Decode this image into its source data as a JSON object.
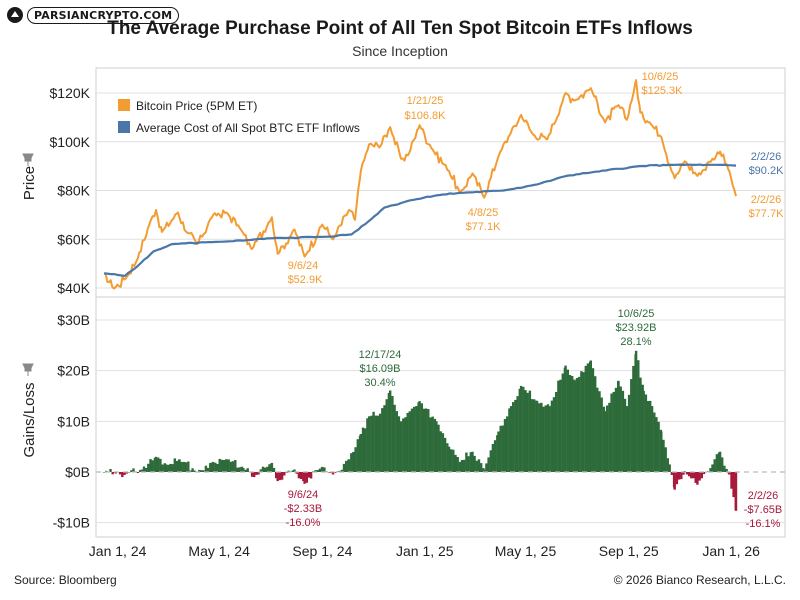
{
  "header": {
    "logo_text": "PARSIANCRYPTO.COM",
    "title": "The Average Purchase Point of All Ten Spot Bitcoin ETFs Inflows",
    "subtitle": "Since Inception"
  },
  "footer": {
    "source": "Source: Bloomberg",
    "copyright": "© 2026 Bianco Research, L.L.C."
  },
  "colors": {
    "price": "#F39C32",
    "cost": "#4A76A8",
    "gain": "#2E6B3A",
    "loss": "#A8183A",
    "grid": "#e0e0e0"
  },
  "icons": {
    "axis_pin": "pushpin-icon"
  },
  "chart_data": [
    {
      "type": "line",
      "panel": "top",
      "ylabel": "Price",
      "x_range": [
        "2024-01-11",
        "2026-02-02"
      ],
      "x_ticks": [
        {
          "date": "2024-01-01",
          "label": "Jan 1, 24"
        },
        {
          "date": "2024-05-01",
          "label": "May 1, 24"
        },
        {
          "date": "2024-09-01",
          "label": "Sep 1, 24"
        },
        {
          "date": "2025-01-01",
          "label": "Jan 1, 25"
        },
        {
          "date": "2025-05-01",
          "label": "May 1, 25"
        },
        {
          "date": "2025-09-01",
          "label": "Sep 1, 25"
        },
        {
          "date": "2026-01-01",
          "label": "Jan 1, 26"
        }
      ],
      "ylim": [
        40000,
        130000
      ],
      "y_ticks": [
        {
          "value": 40000,
          "label": "$40K"
        },
        {
          "value": 60000,
          "label": "$60K"
        },
        {
          "value": 80000,
          "label": "$80K"
        },
        {
          "value": 100000,
          "label": "$100K"
        },
        {
          "value": 120000,
          "label": "$120K"
        }
      ],
      "legend_position": "top-left",
      "series": [
        {
          "name": "Bitcoin Price (5PM ET)",
          "color": "#F39C32",
          "points": [
            [
              "2024-01-11",
              46000
            ],
            [
              "2024-01-23",
              39800
            ],
            [
              "2024-02-08",
              45000
            ],
            [
              "2024-02-20",
              52000
            ],
            [
              "2024-03-05",
              66000
            ],
            [
              "2024-03-13",
              72000
            ],
            [
              "2024-03-20",
              63000
            ],
            [
              "2024-04-08",
              71000
            ],
            [
              "2024-04-18",
              63000
            ],
            [
              "2024-05-01",
              58000
            ],
            [
              "2024-05-20",
              70000
            ],
            [
              "2024-06-05",
              71000
            ],
            [
              "2024-06-20",
              65000
            ],
            [
              "2024-07-05",
              56000
            ],
            [
              "2024-07-29",
              69000
            ],
            [
              "2024-08-05",
              54000
            ],
            [
              "2024-08-25",
              64000
            ],
            [
              "2024-09-06",
              52900
            ],
            [
              "2024-09-27",
              66000
            ],
            [
              "2024-10-10",
              60000
            ],
            [
              "2024-10-29",
              72000
            ],
            [
              "2024-11-05",
              68000
            ],
            [
              "2024-11-12",
              88000
            ],
            [
              "2024-11-22",
              99000
            ],
            [
              "2024-12-05",
              98000
            ],
            [
              "2024-12-17",
              106000
            ],
            [
              "2024-12-30",
              93000
            ],
            [
              "2025-01-08",
              95000
            ],
            [
              "2025-01-21",
              106800
            ],
            [
              "2025-02-05",
              97000
            ],
            [
              "2025-02-25",
              88000
            ],
            [
              "2025-03-10",
              79000
            ],
            [
              "2025-03-25",
              87000
            ],
            [
              "2025-04-08",
              77100
            ],
            [
              "2025-04-25",
              94000
            ],
            [
              "2025-05-10",
              104000
            ],
            [
              "2025-05-22",
              111000
            ],
            [
              "2025-06-05",
              103000
            ],
            [
              "2025-06-22",
              101000
            ],
            [
              "2025-07-14",
              120000
            ],
            [
              "2025-07-25",
              117000
            ],
            [
              "2025-08-13",
              122000
            ],
            [
              "2025-08-30",
              108000
            ],
            [
              "2025-09-15",
              115000
            ],
            [
              "2025-09-25",
              109000
            ],
            [
              "2025-10-06",
              125300
            ],
            [
              "2025-10-11",
              112000
            ],
            [
              "2025-10-22",
              108000
            ],
            [
              "2025-11-05",
              102000
            ],
            [
              "2025-11-21",
              85000
            ],
            [
              "2025-12-03",
              92000
            ],
            [
              "2025-12-18",
              86000
            ],
            [
              "2026-01-05",
              93000
            ],
            [
              "2026-01-14",
              96000
            ],
            [
              "2026-01-25",
              88000
            ],
            [
              "2026-02-02",
              77700
            ]
          ]
        },
        {
          "name": "Average Cost of All Spot BTC ETF Inflows",
          "color": "#4A76A8",
          "points": [
            [
              "2024-01-11",
              46000
            ],
            [
              "2024-02-05",
              45000
            ],
            [
              "2024-02-20",
              49000
            ],
            [
              "2024-03-10",
              55000
            ],
            [
              "2024-04-01",
              58000
            ],
            [
              "2024-06-01",
              59000
            ],
            [
              "2024-08-01",
              60500
            ],
            [
              "2024-10-01",
              61000
            ],
            [
              "2024-11-01",
              62000
            ],
            [
              "2024-11-20",
              67000
            ],
            [
              "2024-12-10",
              73000
            ],
            [
              "2025-01-10",
              76000
            ],
            [
              "2025-02-10",
              78000
            ],
            [
              "2025-03-10",
              79000
            ],
            [
              "2025-05-01",
              80000
            ],
            [
              "2025-06-10",
              82500
            ],
            [
              "2025-07-15",
              86000
            ],
            [
              "2025-08-15",
              87500
            ],
            [
              "2025-10-10",
              90000
            ],
            [
              "2025-11-15",
              90500
            ],
            [
              "2026-01-15",
              90500
            ],
            [
              "2026-02-02",
              90200
            ]
          ]
        }
      ],
      "annotations": [
        {
          "date": "1/21/25",
          "value": "$106.8K",
          "color": "#F39C32"
        },
        {
          "date": "10/6/25",
          "value": "$125.3K",
          "color": "#F39C32"
        },
        {
          "date": "9/6/24",
          "value": "$52.9K",
          "color": "#F39C32"
        },
        {
          "date": "4/8/25",
          "value": "$77.1K",
          "color": "#F39C32"
        },
        {
          "date": "2/2/26",
          "value": "$90.2K",
          "color": "#4A76A8"
        },
        {
          "date": "2/2/26",
          "value": "$77.7K",
          "color": "#F39C32"
        }
      ]
    },
    {
      "type": "bar",
      "panel": "bottom",
      "ylabel": "Gains/Loss",
      "ylim": [
        -10,
        30
      ],
      "y_unit": "B",
      "y_ticks": [
        {
          "value": 30,
          "label": "$30B"
        },
        {
          "value": 20,
          "label": "$20B"
        },
        {
          "value": 10,
          "label": "$10B"
        },
        {
          "value": 0,
          "label": "$0B"
        },
        {
          "value": -10,
          "label": "-$10B"
        }
      ],
      "series": [
        {
          "name": "Gains/Loss",
          "positive_color": "#2E6B3A",
          "negative_color": "#A8183A",
          "points": [
            [
              "2024-01-11",
              0.0
            ],
            [
              "2024-01-25",
              -0.3
            ],
            [
              "2024-02-10",
              0.0
            ],
            [
              "2024-02-25",
              0.5
            ],
            [
              "2024-03-13",
              3.0
            ],
            [
              "2024-03-25",
              1.5
            ],
            [
              "2024-04-10",
              2.5
            ],
            [
              "2024-05-01",
              0.0
            ],
            [
              "2024-05-20",
              2.0
            ],
            [
              "2024-06-05",
              2.5
            ],
            [
              "2024-06-25",
              0.8
            ],
            [
              "2024-07-08",
              -1.0
            ],
            [
              "2024-07-29",
              1.8
            ],
            [
              "2024-08-05",
              -1.8
            ],
            [
              "2024-08-25",
              0.5
            ],
            [
              "2024-09-06",
              -2.33
            ],
            [
              "2024-09-27",
              1.0
            ],
            [
              "2024-10-10",
              -0.5
            ],
            [
              "2024-10-29",
              2.5
            ],
            [
              "2024-11-12",
              7.5
            ],
            [
              "2024-11-22",
              11.0
            ],
            [
              "2024-12-05",
              11.5
            ],
            [
              "2024-12-17",
              16.09
            ],
            [
              "2024-12-30",
              10.0
            ],
            [
              "2025-01-21",
              14.0
            ],
            [
              "2025-02-10",
              10.0
            ],
            [
              "2025-02-25",
              5.0
            ],
            [
              "2025-03-10",
              2.0
            ],
            [
              "2025-03-25",
              4.0
            ],
            [
              "2025-04-08",
              0.5
            ],
            [
              "2025-04-25",
              8.0
            ],
            [
              "2025-05-10",
              13.0
            ],
            [
              "2025-05-22",
              17.0
            ],
            [
              "2025-06-10",
              14.0
            ],
            [
              "2025-06-25",
              13.0
            ],
            [
              "2025-07-14",
              21.0
            ],
            [
              "2025-07-25",
              18.0
            ],
            [
              "2025-08-13",
              22.0
            ],
            [
              "2025-08-30",
              12.0
            ],
            [
              "2025-09-15",
              18.0
            ],
            [
              "2025-09-25",
              13.0
            ],
            [
              "2025-10-06",
              23.92
            ],
            [
              "2025-10-15",
              16.0
            ],
            [
              "2025-10-25",
              13.0
            ],
            [
              "2025-11-05",
              8.0
            ],
            [
              "2025-11-15",
              1.5
            ],
            [
              "2025-11-21",
              -3.5
            ],
            [
              "2025-12-03",
              0.2
            ],
            [
              "2025-12-18",
              -2.5
            ],
            [
              "2026-01-05",
              1.5
            ],
            [
              "2026-01-14",
              4.0
            ],
            [
              "2026-01-25",
              -0.5
            ],
            [
              "2026-02-02",
              -7.65
            ]
          ]
        }
      ],
      "annotations": [
        {
          "date": "12/17/24",
          "value": "$16.09B",
          "pct": "30.4%",
          "color": "#2E6B3A"
        },
        {
          "date": "10/6/25",
          "value": "$23.92B",
          "pct": "28.1%",
          "color": "#2E6B3A"
        },
        {
          "date": "9/6/24",
          "value": "-$2.33B",
          "pct": "-16.0%",
          "color": "#A8183A"
        },
        {
          "date": "2/2/26",
          "value": "-$7.65B",
          "pct": "-16.1%",
          "color": "#A8183A"
        }
      ]
    }
  ]
}
